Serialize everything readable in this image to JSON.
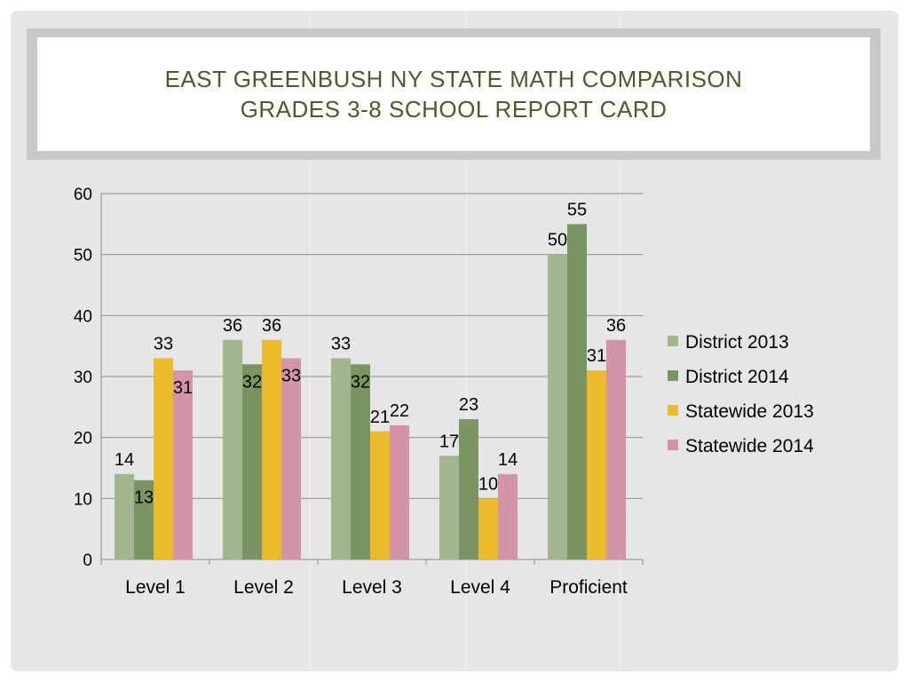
{
  "slide": {
    "title_line1": "EAST GREENBUSH NY STATE MATH COMPARISON",
    "title_line2": "GRADES 3-8 SCHOOL REPORT CARD"
  },
  "chart_data": {
    "type": "bar",
    "categories": [
      "Level 1",
      "Level 2",
      "Level 3",
      "Level 4",
      "Proficient"
    ],
    "series": [
      {
        "name": "District 2013",
        "color": "#a3b58e",
        "values": [
          14,
          36,
          33,
          17,
          50
        ]
      },
      {
        "name": "District 2014",
        "color": "#7a9462",
        "values": [
          13,
          32,
          32,
          23,
          55
        ]
      },
      {
        "name": "Statewide 2013",
        "color": "#ebbb2c",
        "values": [
          33,
          36,
          21,
          10,
          31
        ]
      },
      {
        "name": "Statewide 2014",
        "color": "#d393a9",
        "values": [
          31,
          33,
          22,
          14,
          36
        ]
      }
    ],
    "ylim": [
      0,
      60
    ],
    "yticks": [
      0,
      10,
      20,
      30,
      40,
      50,
      60
    ],
    "grid": true,
    "legend": "right"
  }
}
